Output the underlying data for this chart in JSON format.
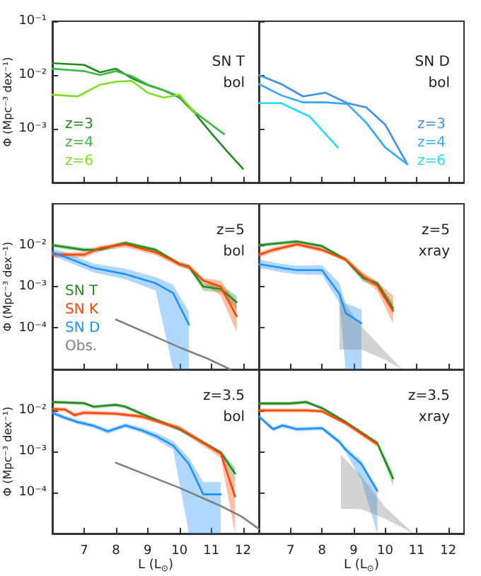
{
  "chart_data": [
    {
      "type": "line",
      "log": true,
      "xlim": [
        6,
        12.5
      ],
      "xticks": [
        7,
        8,
        9,
        10,
        11,
        12
      ],
      "ylim": [
        0.0001,
        0.1
      ],
      "yticks": [
        {
          "value": 0.1,
          "label": "10⁻¹"
        },
        {
          "value": 0.01,
          "label": "10⁻²"
        },
        {
          "value": 0.001,
          "label": "10⁻³"
        }
      ],
      "tick_labels": "y",
      "ylabel": "Φ (Mpc⁻³ dex⁻¹)",
      "annotations": [
        "SN T",
        "bol"
      ],
      "legend": "bottom left",
      "series": [
        {
          "name": "z=3",
          "color": "#1f8a1f",
          "x": [
            6,
            7,
            7.5,
            8,
            8.5,
            9,
            9.5,
            10,
            10.5,
            11,
            11.5,
            12
          ],
          "values": [
            0.0166,
            0.0154,
            0.0112,
            0.0131,
            0.0087,
            0.0065,
            0.0052,
            0.0038,
            0.0019,
            0.00083,
            0.00038,
            0.00018
          ]
        },
        {
          "name": "z=4",
          "color": "#3cb83c",
          "x": [
            6,
            7,
            7.5,
            8,
            8.5,
            9,
            9.5,
            10,
            10.5,
            11,
            11.4
          ],
          "values": [
            0.0131,
            0.0118,
            0.01,
            0.0118,
            0.0095,
            0.0066,
            0.0052,
            0.004,
            0.002,
            0.0012,
            0.0008
          ]
        },
        {
          "name": "z=6",
          "color": "#7fe020",
          "x": [
            6,
            6.8,
            7.5,
            8,
            8.5,
            9,
            9.5,
            10,
            10.5
          ],
          "values": [
            0.0043,
            0.004,
            0.0066,
            0.0075,
            0.0078,
            0.0047,
            0.0038,
            0.0043,
            0.0019
          ]
        }
      ]
    },
    {
      "type": "line",
      "log": true,
      "xlim": [
        6,
        12.5
      ],
      "xticks": [
        7,
        8,
        9,
        10,
        11,
        12
      ],
      "ylim": [
        0.0001,
        0.1
      ],
      "yticks": [
        {
          "value": 0.1,
          "label": null
        },
        {
          "value": 0.01,
          "label": null
        },
        {
          "value": 0.001,
          "label": null
        }
      ],
      "tick_labels": false,
      "annotations": [
        "SN D",
        "bol"
      ],
      "legend": "bottom right",
      "series": [
        {
          "name": "z=3",
          "color": "#3b8ff0",
          "x": [
            6,
            6.7,
            7.4,
            8.1,
            8.8,
            9.4,
            10,
            10.7
          ],
          "values": [
            0.01,
            0.0068,
            0.004,
            0.0047,
            0.003,
            0.0025,
            0.0012,
            0.00022
          ]
        },
        {
          "name": "z=4",
          "color": "#33aaff",
          "x": [
            6,
            6.7,
            7.4,
            8.1,
            8.8,
            9.4,
            10,
            10.7
          ],
          "values": [
            0.0068,
            0.0042,
            0.0031,
            0.0031,
            0.0029,
            0.0013,
            0.00045,
            0.00022
          ]
        },
        {
          "name": "z=6",
          "color": "#22ddff",
          "x": [
            6,
            6.7,
            7.6,
            8.5
          ],
          "values": [
            0.003,
            0.003,
            0.0017,
            0.00045
          ]
        }
      ]
    },
    {
      "type": "line",
      "log": true,
      "xlim": [
        6,
        12.5
      ],
      "xticks": [
        7,
        8,
        9,
        10,
        11,
        12
      ],
      "ylim": [
        1e-05,
        0.1
      ],
      "yticks": [
        {
          "value": 0.01,
          "label": "10⁻²"
        },
        {
          "value": 0.001,
          "label": "10⁻³"
        },
        {
          "value": 0.0001,
          "label": "10⁻⁴"
        }
      ],
      "tick_labels": "y",
      "ylabel": "Φ (Mpc⁻³ dex⁻¹)",
      "annotations": [
        "z=5",
        "bol"
      ],
      "legend": "bottom left",
      "series": [
        {
          "name": "SN T",
          "color": "#228b22",
          "x": [
            6,
            7,
            7.5,
            8.3,
            9.25,
            10,
            10.3,
            10.75,
            11.3,
            11.8
          ],
          "values": [
            0.01,
            0.0077,
            0.0078,
            0.0114,
            0.0077,
            0.0035,
            0.003,
            0.001,
            0.00087,
            0.00042
          ],
          "lower": [
            0.0089,
            0.0069,
            0.007,
            0.0102,
            0.0069,
            0.0031,
            0.0026,
            0.0008,
            0.00072,
            0.00028
          ],
          "upper": [
            0.0112,
            0.0086,
            0.0087,
            0.0127,
            0.0086,
            0.0039,
            0.0034,
            0.0012,
            0.00105,
            0.0006
          ]
        },
        {
          "name": "SN K",
          "color": "#ff4500",
          "x": [
            6,
            7,
            7.5,
            8.3,
            9.25,
            10,
            10.3,
            10.75,
            11.3,
            11.8
          ],
          "values": [
            0.0059,
            0.0059,
            0.0085,
            0.0105,
            0.0067,
            0.0035,
            0.003,
            0.0014,
            0.001,
            0.00019
          ],
          "lower": [
            0.005,
            0.005,
            0.0072,
            0.0089,
            0.0057,
            0.003,
            0.0026,
            0.0012,
            0.0006,
            8e-05
          ],
          "upper": [
            0.0068,
            0.0068,
            0.0098,
            0.0121,
            0.0077,
            0.004,
            0.0035,
            0.0016,
            0.0014,
            0.0004
          ]
        },
        {
          "name": "SN D",
          "color": "#1e90ff",
          "x": [
            6,
            6.4,
            7.3,
            8.3,
            9.25,
            9.8,
            10.3
          ],
          "values": [
            0.0067,
            0.0052,
            0.0028,
            0.002,
            0.0012,
            0.0007,
            0.00012
          ],
          "lower": [
            0.0055,
            0.0042,
            0.0022,
            0.0015,
            0.0008,
            1e-05,
            1e-05
          ],
          "upper": [
            0.0085,
            0.0066,
            0.0036,
            0.0027,
            0.0017,
            0.0011,
            0.00025
          ]
        },
        {
          "name": "Obs.",
          "color": "#808080",
          "x": [
            8,
            9,
            10,
            10.9,
            11.6
          ],
          "values": [
            0.00016,
            7.4e-05,
            3.4e-05,
            1.8e-05,
            1e-05
          ]
        }
      ]
    },
    {
      "type": "line",
      "log": true,
      "xlim": [
        6,
        12.5
      ],
      "xticks": [
        7,
        8,
        9,
        10,
        11,
        12
      ],
      "ylim": [
        1e-05,
        0.1
      ],
      "yticks": [
        {
          "value": 0.01,
          "label": null
        },
        {
          "value": 0.001,
          "label": null
        },
        {
          "value": 0.0001,
          "label": null
        }
      ],
      "tick_labels": false,
      "annotations": [
        "z=5",
        "xray"
      ],
      "series": [
        {
          "color": "#228b22",
          "x": [
            6,
            7.2,
            8,
            8.75,
            9.3,
            9.75,
            10.25
          ],
          "values": [
            0.01,
            0.0123,
            0.0095,
            0.0045,
            0.0016,
            0.0012,
            0.0003
          ],
          "lower": [
            0.009,
            0.011,
            0.0085,
            0.004,
            0.0013,
            0.001,
            0.00022
          ],
          "upper": [
            0.011,
            0.0136,
            0.0105,
            0.005,
            0.0019,
            0.0014,
            0.0004
          ]
        },
        {
          "color": "#ff4500",
          "x": [
            6,
            6.45,
            7.2,
            8,
            8.75,
            9.3,
            9.75,
            10.25
          ],
          "values": [
            0.0059,
            0.0077,
            0.0105,
            0.0077,
            0.0045,
            0.0018,
            0.00105,
            0.00026
          ],
          "lower": [
            0.005,
            0.0067,
            0.0093,
            0.0068,
            0.004,
            0.0015,
            0.0008,
            0.00013
          ],
          "upper": [
            0.0068,
            0.0088,
            0.0118,
            0.0087,
            0.0051,
            0.0022,
            0.0013,
            0.0006
          ]
        },
        {
          "color": "#1e90ff",
          "x": [
            6,
            6.75,
            7.2,
            8,
            8.55,
            8.75,
            9.25
          ],
          "values": [
            0.0035,
            0.0028,
            0.0025,
            0.0025,
            0.00067,
            0.00023,
            0.00013
          ],
          "lower": [
            0.0028,
            0.0022,
            0.002,
            0.0019,
            0.0004,
            1e-05,
            1e-05
          ],
          "upper": [
            0.0045,
            0.0035,
            0.0032,
            0.0033,
            0.0012,
            0.0004,
            0.00028
          ]
        },
        {
          "color": "#808080",
          "x": [
            8.55,
            9.25,
            10,
            10.55
          ],
          "values": [
            null,
            null,
            null,
            null
          ],
          "lower": [
            3e-05,
            3e-05,
            1.7e-05,
            1e-05
          ],
          "upper": [
            0.0006,
            0.00011,
            2.7e-05,
            1e-05
          ]
        }
      ]
    },
    {
      "type": "line",
      "log": true,
      "xlim": [
        6,
        12.5
      ],
      "xticks": [
        7,
        8,
        9,
        10,
        11,
        12
      ],
      "ylim": [
        1e-05,
        0.1
      ],
      "yticks": [
        {
          "value": 0.01,
          "label": "10⁻²"
        },
        {
          "value": 0.001,
          "label": "10⁻³"
        },
        {
          "value": 0.0001,
          "label": "10⁻⁴"
        }
      ],
      "xlabel": "L (L$_{⊙}$)",
      "ylabel": "Φ (Mpc⁻³ dex⁻¹)",
      "annotations": [
        "z=3.5",
        "bol"
      ],
      "series": [
        {
          "color": "#228b22",
          "x": [
            6,
            7,
            7.3,
            8,
            8.3,
            9.25,
            10,
            11.3,
            11.75
          ],
          "values": [
            0.016,
            0.015,
            0.0123,
            0.0137,
            0.0123,
            0.0059,
            0.0035,
            0.00095,
            0.00029
          ],
          "lower": [
            0.0144,
            0.0135,
            0.011,
            0.0123,
            0.011,
            0.0053,
            0.0031,
            0.00085,
            0.0002
          ],
          "upper": [
            0.0176,
            0.0165,
            0.0135,
            0.015,
            0.0135,
            0.0065,
            0.0039,
            0.00105,
            0.0004
          ]
        },
        {
          "color": "#ff4500",
          "x": [
            6,
            6.4,
            6.7,
            7,
            8,
            8.8,
            10,
            11.3,
            11.75
          ],
          "values": [
            0.0108,
            0.0105,
            0.0077,
            0.0088,
            0.0083,
            0.0071,
            0.0037,
            0.00088,
            8e-05
          ],
          "lower": [
            0.0095,
            0.0093,
            0.0068,
            0.0078,
            0.0074,
            0.0063,
            0.0033,
            0.0007,
            1e-05
          ],
          "upper": [
            0.0121,
            0.0118,
            0.0087,
            0.0099,
            0.0093,
            0.008,
            0.0042,
            0.001,
            0.0002
          ]
        },
        {
          "color": "#1e90ff",
          "x": [
            6,
            6.35,
            6.8,
            7.3,
            7.75,
            8.3,
            8.8,
            9.25,
            9.8,
            10.3,
            10.75,
            11.3
          ],
          "values": [
            0.0088,
            0.0068,
            0.0052,
            0.0042,
            0.0031,
            0.0043,
            0.0033,
            0.0024,
            0.0014,
            0.00049,
            9e-05,
            9e-05
          ],
          "lower": [
            0.0078,
            0.006,
            0.0046,
            0.0037,
            0.0027,
            0.0038,
            0.0029,
            0.002,
            0.0011,
            1e-05,
            1e-05,
            1e-05
          ],
          "upper": [
            0.0099,
            0.0077,
            0.0059,
            0.0048,
            0.0035,
            0.0049,
            0.0038,
            0.0029,
            0.0018,
            0.0007,
            0.00018,
            0.00018
          ]
        },
        {
          "color": "#808080",
          "x": [
            8,
            9.25,
            10,
            11.3,
            11.95,
            12.5
          ],
          "values": [
            0.00053,
            0.00022,
            0.00013,
            4.7e-05,
            2.6e-05,
            1.3e-05
          ]
        }
      ]
    },
    {
      "type": "line",
      "log": true,
      "xlim": [
        6,
        12.5
      ],
      "xticks": [
        7,
        8,
        9,
        10,
        11,
        12
      ],
      "ylim": [
        1e-05,
        0.1
      ],
      "yticks": [
        {
          "value": 0.01,
          "label": null
        },
        {
          "value": 0.001,
          "label": null
        },
        {
          "value": 0.0001,
          "label": null
        }
      ],
      "tick_labels": "x",
      "xlabel": "L (L$_{⊙}$)",
      "annotations": [
        "z=3.5",
        "xray"
      ],
      "series": [
        {
          "color": "#228b22",
          "x": [
            6,
            7,
            7.5,
            8,
            8.75,
            9.75,
            10.25
          ],
          "values": [
            0.0148,
            0.0148,
            0.016,
            0.0114,
            0.0052,
            0.0016,
            0.00022
          ],
          "lower": [
            0.0133,
            0.0133,
            0.0144,
            0.0103,
            0.0047,
            0.0014,
            0.00015
          ],
          "upper": [
            0.0163,
            0.0163,
            0.0176,
            0.0125,
            0.0057,
            0.0018,
            0.0003
          ]
        },
        {
          "color": "#ff4500",
          "x": [
            6,
            7,
            7.5,
            8,
            8.75,
            9.75
          ],
          "values": [
            0.01,
            0.01,
            0.01,
            0.0095,
            0.0049,
            0.0015
          ],
          "lower": [
            0.009,
            0.009,
            0.009,
            0.0085,
            0.0043,
            0.0013
          ],
          "upper": [
            0.0111,
            0.0111,
            0.0111,
            0.0106,
            0.0055,
            0.0017
          ]
        },
        {
          "color": "#1e90ff",
          "x": [
            6,
            6.45,
            6.75,
            7.2,
            8,
            8.55,
            8.75,
            9.25,
            9.75
          ],
          "values": [
            0.0071,
            0.0035,
            0.0043,
            0.0035,
            0.0037,
            0.0017,
            0.0011,
            0.00049,
            0.00011
          ],
          "lower": [
            0.0064,
            0.0031,
            0.0038,
            0.0031,
            0.0033,
            0.0015,
            0.00095,
            0.0002,
            1e-05
          ],
          "upper": [
            0.0079,
            0.0039,
            0.0048,
            0.0039,
            0.0041,
            0.002,
            0.0013,
            0.0006,
            0.00013
          ]
        },
        {
          "color": "#808080",
          "x": [
            8.6,
            9.25,
            10,
            10.9
          ],
          "values": [
            null,
            null,
            null,
            null
          ],
          "lower": [
            4e-05,
            3.9e-05,
            2.3e-05,
            1e-05
          ],
          "upper": [
            0.00083,
            0.00025,
            4.4e-05,
            1e-05
          ]
        }
      ]
    }
  ]
}
